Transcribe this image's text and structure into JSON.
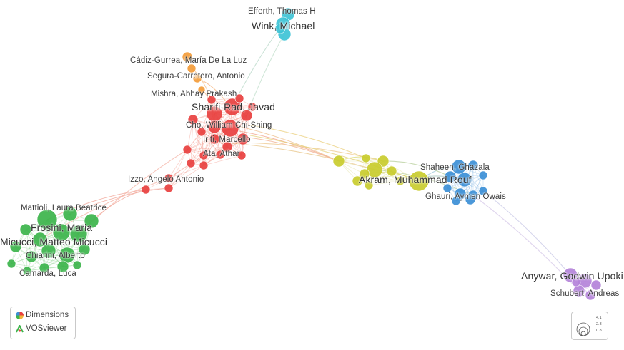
{
  "labels": [
    {
      "id": "efferth",
      "text": "Efferth, Thomas H"
    },
    {
      "id": "wink",
      "text": "Wink, Michael"
    },
    {
      "id": "cadiz",
      "text": "Cádiz-Gurrea, María De La Luz"
    },
    {
      "id": "segura",
      "text": "Segura-Carretero, Antonio"
    },
    {
      "id": "mishra",
      "text": "Mishra, Abhay Prakash"
    },
    {
      "id": "sharifi",
      "text": "Sharifi-Rad, Javad"
    },
    {
      "id": "cho",
      "text": "Cho, William Chi-Shing"
    },
    {
      "id": "iriti",
      "text": "Iriti, Marcello"
    },
    {
      "id": "ata",
      "text": "Ata, Athar"
    },
    {
      "id": "izzo",
      "text": "Izzo, Angelo Antonio"
    },
    {
      "id": "akram",
      "text": "Akram, Muhammad Rouf"
    },
    {
      "id": "shaheen",
      "text": "Shaheen, Ghazala"
    },
    {
      "id": "ghauri",
      "text": "Ghauri, Aymen Owais"
    },
    {
      "id": "mattioli",
      "text": "Mattioli, Laura Beatrice"
    },
    {
      "id": "frosini",
      "text": "Frosini, Maria"
    },
    {
      "id": "micucci",
      "text": "Micucci, Matteo Micucci"
    },
    {
      "id": "chiarini",
      "text": "Chiarini, Alberto"
    },
    {
      "id": "camarda",
      "text": "Camarda, Luca"
    },
    {
      "id": "anywar",
      "text": "Anywar, Godwin Upoki"
    },
    {
      "id": "schubert",
      "text": "Schubert, Andreas"
    }
  ],
  "clusters": {
    "red": "#e8403f",
    "green": "#3cb44b",
    "blue": "#3c8fd6",
    "yellow": "#c9cc2e",
    "purple": "#b483d9",
    "cyan": "#3ec3d6",
    "orange": "#f39c3a"
  },
  "branding": {
    "dimensions": "Dimensions",
    "vosviewer": "VOSviewer"
  },
  "legend": {
    "values": [
      "4.1",
      "2.3",
      "0.8"
    ]
  }
}
